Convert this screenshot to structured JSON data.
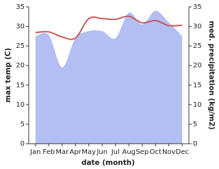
{
  "chart_data": {
    "type": "combo",
    "x_label": "date (month)",
    "y_label": "max temp (C)",
    "y2_label": "med. precipitation (kg/m2)",
    "categories": [
      "Jan",
      "Feb",
      "Mar",
      "Apr",
      "May",
      "Jun",
      "Jul",
      "Aug",
      "Sep",
      "Oct",
      "Nov",
      "Dec"
    ],
    "ylim": [
      0,
      35
    ],
    "yticks": [
      0,
      5,
      10,
      15,
      20,
      25,
      30,
      35
    ],
    "y2lim": [
      0,
      35
    ],
    "y2ticks": [
      0,
      5,
      10,
      15,
      20,
      25,
      30,
      35
    ],
    "series": [
      {
        "name": "med. precipitation",
        "type": "area",
        "axis": "y2",
        "color": "#b3bff2",
        "values": [
          27.5,
          27.8,
          19.5,
          27.0,
          28.8,
          28.8,
          27.0,
          33.5,
          30.5,
          34.0,
          31.0,
          27.5
        ]
      },
      {
        "name": "max temp",
        "type": "line",
        "axis": "y",
        "color": "#c8575a",
        "values": [
          28.4,
          28.6,
          27.3,
          27.0,
          32.0,
          32.0,
          31.8,
          32.6,
          30.9,
          31.5,
          30.2,
          30.3
        ]
      }
    ]
  }
}
